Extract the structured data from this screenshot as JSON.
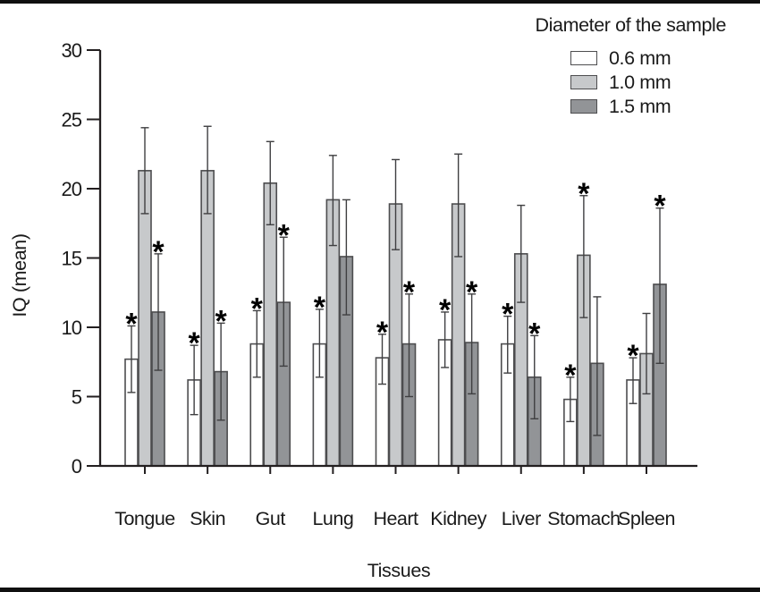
{
  "chart_data": {
    "type": "bar",
    "title": "",
    "xlabel": "Tissues",
    "ylabel": "IQ (mean)",
    "ylim": [
      0,
      30
    ],
    "yticks": [
      0,
      5,
      10,
      15,
      20,
      25,
      30
    ],
    "grid": false,
    "legend_title": "Diameter of the sample",
    "legend_position": "top-right",
    "significance_marker": "*",
    "categories": [
      "Tongue",
      "Skin",
      "Gut",
      "Lung",
      "Heart",
      "Kidney",
      "Liver",
      "Stomach",
      "Spleen"
    ],
    "series": [
      {
        "name": "0.6 mm",
        "color": "#ffffff",
        "values": [
          7.7,
          6.2,
          8.8,
          8.8,
          7.8,
          9.1,
          8.8,
          4.8,
          6.2
        ],
        "err_low": [
          5.3,
          3.7,
          6.4,
          6.4,
          5.9,
          7.1,
          6.7,
          3.2,
          4.5
        ],
        "err_high": [
          10.1,
          8.7,
          11.2,
          11.3,
          9.5,
          11.1,
          10.8,
          6.4,
          7.8
        ],
        "significant": [
          true,
          true,
          true,
          true,
          true,
          true,
          true,
          true,
          true
        ]
      },
      {
        "name": "1.0 mm",
        "color": "#c7c9cb",
        "values": [
          21.3,
          21.3,
          20.4,
          19.2,
          18.9,
          18.9,
          15.3,
          15.2,
          8.1
        ],
        "err_low": [
          18.2,
          18.2,
          17.4,
          15.9,
          15.6,
          15.1,
          11.8,
          10.7,
          5.2
        ],
        "err_high": [
          24.4,
          24.5,
          23.4,
          22.4,
          22.1,
          22.5,
          18.8,
          19.5,
          11.0
        ],
        "significant": [
          false,
          false,
          false,
          false,
          false,
          false,
          false,
          true,
          false
        ]
      },
      {
        "name": "1.5 mm",
        "color": "#929497",
        "values": [
          11.1,
          6.8,
          11.8,
          15.1,
          8.8,
          8.9,
          6.4,
          7.4,
          13.1
        ],
        "err_low": [
          6.9,
          3.3,
          7.2,
          10.9,
          5.0,
          5.2,
          3.4,
          2.2,
          7.4
        ],
        "err_high": [
          15.3,
          10.3,
          16.5,
          19.2,
          12.4,
          12.4,
          9.4,
          12.2,
          18.6
        ],
        "significant": [
          true,
          true,
          true,
          false,
          true,
          true,
          true,
          false,
          true
        ]
      }
    ]
  },
  "colors": {
    "axis": "#231f20",
    "bar_border": "#4d4d4f",
    "error_bar": "#3f3f41",
    "text": "#1a1a1a",
    "frame_border": "#101010",
    "background": "#ffffff"
  }
}
